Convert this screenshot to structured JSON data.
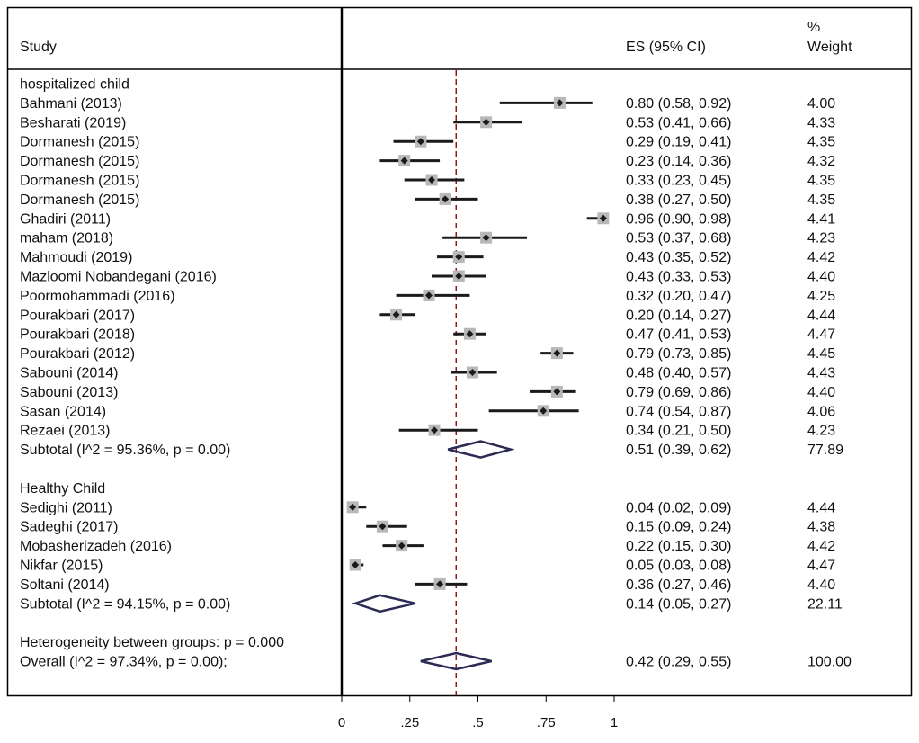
{
  "chart_data": {
    "type": "forest",
    "headers": {
      "study": "Study",
      "es": "ES (95% CI)",
      "weight_pct": "%",
      "weight": "Weight"
    },
    "reference_line": 0.42,
    "xlim": [
      0,
      1
    ],
    "x_ticks": [
      {
        "value": 0,
        "label": "0"
      },
      {
        "value": 0.25,
        "label": ".25"
      },
      {
        "value": 0.5,
        "label": ".5"
      },
      {
        "value": 0.75,
        "label": ".75"
      },
      {
        "value": 1,
        "label": "1"
      }
    ],
    "colors": {
      "ci_line": "#1a1a1a",
      "marker_box": "#b8b8b8",
      "diamond": "#2b2b55",
      "reference": "#8b1a1a",
      "frame": "#000000"
    },
    "groups": [
      {
        "name": "hospitalized child",
        "studies": [
          {
            "study": "Bahmani (2013)",
            "es": 0.8,
            "lo": 0.58,
            "hi": 0.92,
            "es_text": "0.80 (0.58, 0.92)",
            "weight": "4.00"
          },
          {
            "study": "Besharati (2019)",
            "es": 0.53,
            "lo": 0.41,
            "hi": 0.66,
            "es_text": "0.53 (0.41, 0.66)",
            "weight": "4.33"
          },
          {
            "study": "Dormanesh (2015)",
            "es": 0.29,
            "lo": 0.19,
            "hi": 0.41,
            "es_text": "0.29 (0.19, 0.41)",
            "weight": "4.35"
          },
          {
            "study": "Dormanesh (2015)",
            "es": 0.23,
            "lo": 0.14,
            "hi": 0.36,
            "es_text": "0.23 (0.14, 0.36)",
            "weight": "4.32"
          },
          {
            "study": "Dormanesh (2015)",
            "es": 0.33,
            "lo": 0.23,
            "hi": 0.45,
            "es_text": "0.33 (0.23, 0.45)",
            "weight": "4.35"
          },
          {
            "study": "Dormanesh (2015)",
            "es": 0.38,
            "lo": 0.27,
            "hi": 0.5,
            "es_text": "0.38 (0.27, 0.50)",
            "weight": "4.35"
          },
          {
            "study": "Ghadiri (2011)",
            "es": 0.96,
            "lo": 0.9,
            "hi": 0.98,
            "es_text": "0.96 (0.90, 0.98)",
            "weight": "4.41"
          },
          {
            "study": "maham (2018)",
            "es": 0.53,
            "lo": 0.37,
            "hi": 0.68,
            "es_text": "0.53 (0.37, 0.68)",
            "weight": "4.23"
          },
          {
            "study": "Mahmoudi (2019)",
            "es": 0.43,
            "lo": 0.35,
            "hi": 0.52,
            "es_text": "0.43 (0.35, 0.52)",
            "weight": "4.42"
          },
          {
            "study": "Mazloomi Nobandegani (2016)",
            "es": 0.43,
            "lo": 0.33,
            "hi": 0.53,
            "es_text": "0.43 (0.33, 0.53)",
            "weight": "4.40"
          },
          {
            "study": "Poormohammadi (2016)",
            "es": 0.32,
            "lo": 0.2,
            "hi": 0.47,
            "es_text": "0.32 (0.20, 0.47)",
            "weight": "4.25"
          },
          {
            "study": "Pourakbari (2017)",
            "es": 0.2,
            "lo": 0.14,
            "hi": 0.27,
            "es_text": "0.20 (0.14, 0.27)",
            "weight": "4.44"
          },
          {
            "study": "Pourakbari (2018)",
            "es": 0.47,
            "lo": 0.41,
            "hi": 0.53,
            "es_text": "0.47 (0.41, 0.53)",
            "weight": "4.47"
          },
          {
            "study": "Pourakbari (2012)",
            "es": 0.79,
            "lo": 0.73,
            "hi": 0.85,
            "es_text": "0.79 (0.73, 0.85)",
            "weight": "4.45"
          },
          {
            "study": "Sabouni (2014)",
            "es": 0.48,
            "lo": 0.4,
            "hi": 0.57,
            "es_text": "0.48 (0.40, 0.57)",
            "weight": "4.43"
          },
          {
            "study": "Sabouni (2013)",
            "es": 0.79,
            "lo": 0.69,
            "hi": 0.86,
            "es_text": "0.79 (0.69, 0.86)",
            "weight": "4.40"
          },
          {
            "study": "Sasan (2014)",
            "es": 0.74,
            "lo": 0.54,
            "hi": 0.87,
            "es_text": "0.74 (0.54, 0.87)",
            "weight": "4.06"
          },
          {
            "study": "Rezaei (2013)",
            "es": 0.34,
            "lo": 0.21,
            "hi": 0.5,
            "es_text": "0.34 (0.21, 0.50)",
            "weight": "4.23"
          }
        ],
        "subtotal": {
          "label": "Subtotal  (I^2 = 95.36%, p = 0.00)",
          "es": 0.51,
          "lo": 0.39,
          "hi": 0.62,
          "es_text": "0.51 (0.39, 0.62)",
          "weight": "77.89"
        }
      },
      {
        "name": "Healthy Child",
        "studies": [
          {
            "study": "Sedighi (2011)",
            "es": 0.04,
            "lo": 0.02,
            "hi": 0.09,
            "es_text": "0.04 (0.02, 0.09)",
            "weight": "4.44"
          },
          {
            "study": "Sadeghi (2017)",
            "es": 0.15,
            "lo": 0.09,
            "hi": 0.24,
            "es_text": "0.15 (0.09, 0.24)",
            "weight": "4.38"
          },
          {
            "study": "Mobasherizadeh (2016)",
            "es": 0.22,
            "lo": 0.15,
            "hi": 0.3,
            "es_text": "0.22 (0.15, 0.30)",
            "weight": "4.42"
          },
          {
            "study": "Nikfar (2015)",
            "es": 0.05,
            "lo": 0.03,
            "hi": 0.08,
            "es_text": "0.05 (0.03, 0.08)",
            "weight": "4.47"
          },
          {
            "study": "Soltani (2014)",
            "es": 0.36,
            "lo": 0.27,
            "hi": 0.46,
            "es_text": "0.36 (0.27, 0.46)",
            "weight": "4.40"
          }
        ],
        "subtotal": {
          "label": "Subtotal  (I^2 = 94.15%, p = 0.00)",
          "es": 0.14,
          "lo": 0.05,
          "hi": 0.27,
          "es_text": "0.14 (0.05, 0.27)",
          "weight": "22.11"
        }
      }
    ],
    "heterogeneity": "Heterogeneity between groups: p = 0.000",
    "overall": {
      "label": "Overall  (I^2 = 97.34%, p = 0.00);",
      "es": 0.42,
      "lo": 0.29,
      "hi": 0.55,
      "es_text": "0.42 (0.29, 0.55)",
      "weight": "100.00"
    }
  }
}
